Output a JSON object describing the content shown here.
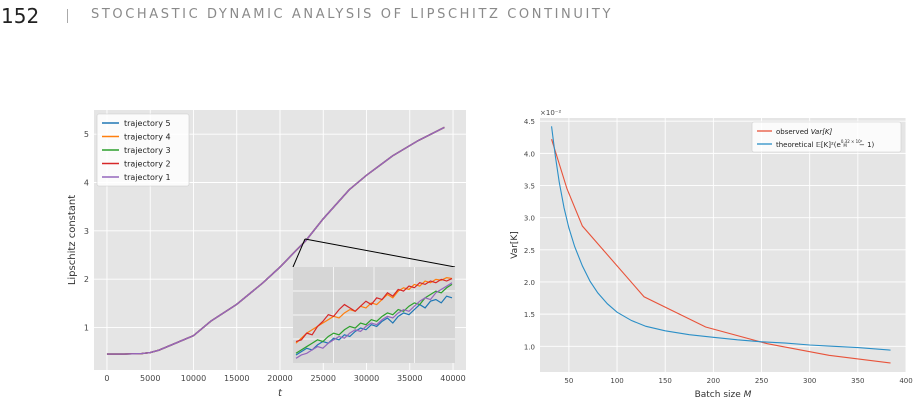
{
  "header": {
    "page_number": "152",
    "running_title": "STOCHASTIC DYNAMIC ANALYSIS OF LIPSCHITZ CONTINUITY"
  },
  "chart_data": [
    {
      "type": "line",
      "xlabel": "t",
      "ylabel": "Lipschitz constant",
      "xlim": [
        -1500,
        41500
      ],
      "ylim": [
        0.12,
        5.5
      ],
      "xticks": [
        0,
        5000,
        10000,
        15000,
        20000,
        25000,
        30000,
        35000,
        40000
      ],
      "yticks": [
        1,
        2,
        3,
        4,
        5
      ],
      "grid": true,
      "legend": "top-left",
      "x": [
        0,
        2000,
        4000,
        5000,
        6000,
        8000,
        10000,
        12000,
        15000,
        18000,
        20000,
        22000,
        23000,
        25000,
        28000,
        30000,
        33000,
        36000,
        39000
      ],
      "series": [
        {
          "name": "trajectory 5",
          "color": "#1f77b4",
          "values": [
            0.45,
            0.45,
            0.46,
            0.48,
            0.53,
            0.68,
            0.83,
            1.13,
            1.48,
            1.92,
            2.25,
            2.62,
            2.8,
            3.25,
            3.85,
            4.15,
            4.55,
            4.87,
            5.14
          ]
        },
        {
          "name": "trajectory 4",
          "color": "#ff7f0e",
          "values": [
            0.45,
            0.45,
            0.46,
            0.48,
            0.53,
            0.68,
            0.83,
            1.13,
            1.48,
            1.92,
            2.25,
            2.62,
            2.8,
            3.25,
            3.85,
            4.15,
            4.55,
            4.87,
            5.14
          ]
        },
        {
          "name": "trajectory 3",
          "color": "#2ca02c",
          "values": [
            0.45,
            0.45,
            0.46,
            0.48,
            0.53,
            0.68,
            0.83,
            1.13,
            1.48,
            1.92,
            2.25,
            2.62,
            2.8,
            3.25,
            3.85,
            4.15,
            4.55,
            4.87,
            5.14
          ]
        },
        {
          "name": "trajectory 2",
          "color": "#d62728",
          "values": [
            0.45,
            0.45,
            0.46,
            0.48,
            0.53,
            0.68,
            0.83,
            1.13,
            1.48,
            1.92,
            2.25,
            2.62,
            2.8,
            3.25,
            3.85,
            4.15,
            4.55,
            4.87,
            5.14
          ]
        },
        {
          "name": "trajectory 1",
          "color": "#9467bd",
          "values": [
            0.45,
            0.45,
            0.46,
            0.48,
            0.53,
            0.68,
            0.83,
            1.13,
            1.48,
            1.92,
            2.25,
            2.62,
            2.8,
            3.25,
            3.85,
            4.15,
            4.55,
            4.87,
            5.14
          ]
        }
      ],
      "inset": {
        "series": [
          {
            "name": "trajectory 5",
            "color": "#1f77b4",
            "values": [
              0.06,
              0.1,
              0.14,
              0.12,
              0.18,
              0.22,
              0.2,
              0.26,
              0.24,
              0.3,
              0.28,
              0.34,
              0.38,
              0.36,
              0.42,
              0.4,
              0.46,
              0.5,
              0.44,
              0.52,
              0.56,
              0.54,
              0.6,
              0.66,
              0.62,
              0.7,
              0.72,
              0.68,
              0.76,
              0.74
            ]
          },
          {
            "name": "trajectory 4",
            "color": "#ff7f0e",
            "values": [
              0.2,
              0.26,
              0.32,
              0.36,
              0.4,
              0.44,
              0.48,
              0.52,
              0.5,
              0.56,
              0.6,
              0.58,
              0.64,
              0.62,
              0.68,
              0.66,
              0.72,
              0.78,
              0.74,
              0.82,
              0.86,
              0.84,
              0.9,
              0.88,
              0.94,
              0.92,
              0.96,
              0.95,
              0.98,
              0.97
            ]
          },
          {
            "name": "trajectory 3",
            "color": "#2ca02c",
            "values": [
              0.08,
              0.12,
              0.16,
              0.2,
              0.24,
              0.22,
              0.28,
              0.32,
              0.3,
              0.36,
              0.4,
              0.38,
              0.44,
              0.42,
              0.48,
              0.46,
              0.52,
              0.56,
              0.54,
              0.6,
              0.58,
              0.64,
              0.68,
              0.66,
              0.74,
              0.78,
              0.82,
              0.8,
              0.86,
              0.9
            ]
          },
          {
            "name": "trajectory 2",
            "color": "#d62728",
            "values": [
              0.22,
              0.24,
              0.32,
              0.3,
              0.4,
              0.46,
              0.54,
              0.52,
              0.6,
              0.66,
              0.62,
              0.58,
              0.64,
              0.7,
              0.66,
              0.74,
              0.72,
              0.8,
              0.76,
              0.84,
              0.82,
              0.88,
              0.86,
              0.92,
              0.9,
              0.94,
              0.92,
              0.96,
              0.94,
              0.97
            ]
          },
          {
            "name": "trajectory 1",
            "color": "#9467bd",
            "values": [
              0.02,
              0.06,
              0.08,
              0.12,
              0.16,
              0.14,
              0.2,
              0.24,
              0.28,
              0.26,
              0.32,
              0.36,
              0.34,
              0.4,
              0.44,
              0.42,
              0.48,
              0.52,
              0.5,
              0.56,
              0.6,
              0.58,
              0.64,
              0.7,
              0.74,
              0.72,
              0.8,
              0.84,
              0.88,
              0.92
            ]
          }
        ]
      }
    },
    {
      "type": "line",
      "xlabel": "Batch size M",
      "ylabel": "Var[K]",
      "axis_multiplier": "×10⁻²",
      "xlim": [
        20,
        400
      ],
      "ylim": [
        0.6,
        4.55
      ],
      "xticks": [
        50,
        100,
        150,
        200,
        250,
        300,
        350,
        400
      ],
      "yticks": [
        1.0,
        1.5,
        2.0,
        2.5,
        3.0,
        3.5,
        4.0,
        4.5
      ],
      "grid": true,
      "legend": "top-right",
      "series": [
        {
          "name": "observed Var[K]",
          "color": "#e8533a",
          "x": [
            32,
            48,
            64,
            128,
            192,
            256,
            320,
            384
          ],
          "values": [
            4.22,
            3.45,
            2.87,
            1.77,
            1.3,
            1.04,
            0.86,
            0.74
          ]
        },
        {
          "name": "theoretical 𝔼[K]²(e^(0.32×10²/M) − 1)",
          "color": "#2b8fc7",
          "x": [
            32,
            36,
            40,
            45,
            50,
            56,
            64,
            72,
            80,
            90,
            100,
            115,
            130,
            150,
            175,
            200,
            225,
            250,
            275,
            300,
            325,
            350,
            384
          ],
          "values": [
            4.42,
            3.95,
            3.55,
            3.15,
            2.84,
            2.55,
            2.25,
            2.01,
            1.83,
            1.66,
            1.53,
            1.4,
            1.31,
            1.24,
            1.18,
            1.14,
            1.1,
            1.07,
            1.05,
            1.02,
            1.0,
            0.98,
            0.94
          ]
        }
      ]
    }
  ],
  "legend2": {
    "observed_prefix": "observed ",
    "observed_var": "Var[K]",
    "theory_prefix": "theoretical ",
    "theory_formula": "𝔼[K]²(e",
    "theory_exp": "0.32 × 10²",
    "theory_exp_den": "M",
    "theory_tail": " − 1)"
  }
}
